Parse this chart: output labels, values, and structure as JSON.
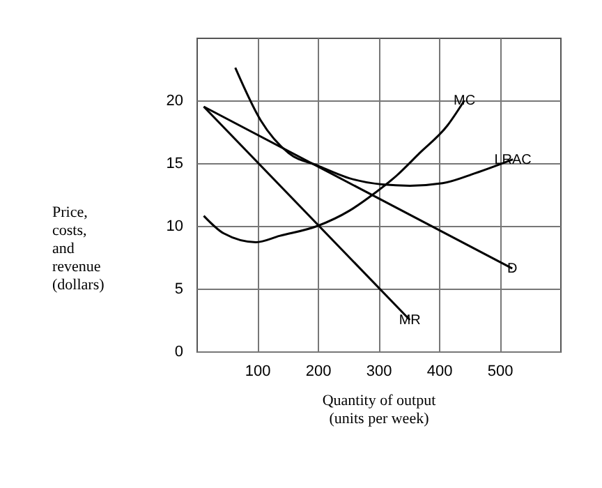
{
  "chart_data": {
    "type": "line",
    "xlabel": "Quantity of output\n(units per week)",
    "ylabel": "Price,\ncosts,\nand\nrevenue\n(dollars)",
    "xlim": [
      0,
      600
    ],
    "ylim": [
      0,
      25
    ],
    "xticks": [
      100,
      200,
      300,
      400,
      500
    ],
    "yticks": [
      0,
      5,
      10,
      15,
      20
    ],
    "grid": true,
    "legend": false,
    "series": [
      {
        "name": "MC",
        "color": "#000000",
        "x": [
          12,
          45,
          98,
          137,
          200,
          252,
          291,
          330,
          368,
          414,
          442
        ],
        "values": [
          10.8,
          9.4,
          8.7,
          9.2,
          10,
          11.2,
          12.5,
          14,
          15.8,
          18,
          20
        ]
      },
      {
        "name": "LRAC",
        "color": "#000000",
        "x": [
          64,
          106,
          152,
          200,
          252,
          306,
          352,
          406,
          460,
          522
        ],
        "values": [
          22.6,
          18.4,
          15.8,
          14.8,
          13.8,
          13.3,
          13.2,
          13.4,
          14.2,
          15.3
        ]
      },
      {
        "name": "D",
        "color": "#000000",
        "x": [
          12,
          521
        ],
        "values": [
          19.5,
          6.6
        ]
      },
      {
        "name": "MR",
        "color": "#000000",
        "x": [
          12,
          352
        ],
        "values": [
          19.5,
          2.5
        ]
      }
    ]
  }
}
